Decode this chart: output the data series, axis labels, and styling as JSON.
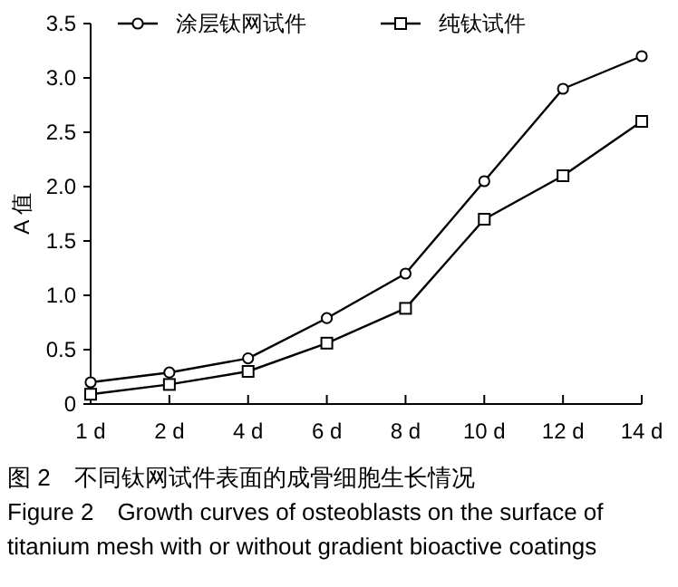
{
  "chart_data": {
    "type": "line",
    "categories": [
      "1 d",
      "2 d",
      "4 d",
      "6 d",
      "8 d",
      "10 d",
      "12 d",
      "14 d"
    ],
    "series": [
      {
        "name": "涂层钛网试件",
        "color": "#000000",
        "marker": "circle",
        "values": [
          0.2,
          0.29,
          0.42,
          0.79,
          1.2,
          2.05,
          2.9,
          3.2
        ]
      },
      {
        "name": "纯钛试件",
        "color": "#000000",
        "marker": "square",
        "values": [
          0.09,
          0.18,
          0.3,
          0.56,
          0.88,
          1.7,
          2.1,
          2.6
        ]
      }
    ],
    "ylabel": "A 值",
    "ylim": [
      0,
      3.5
    ],
    "yticks": [
      0,
      0.5,
      {
        "value": 1,
        "label": "1.0"
      },
      1.5,
      {
        "value": 2,
        "label": "2.0"
      },
      2.5,
      {
        "value": 3,
        "label": "3.0"
      },
      3.5
    ],
    "legend": "top",
    "grid": false,
    "line_style": "solid",
    "annotations": [
      "图 2　不同钛网试件表面的成骨细胞生长情况",
      "Figure 2　Growth curves of osteoblasts on the surface of titanium mesh with or without gradient bioactive coatings"
    ]
  }
}
